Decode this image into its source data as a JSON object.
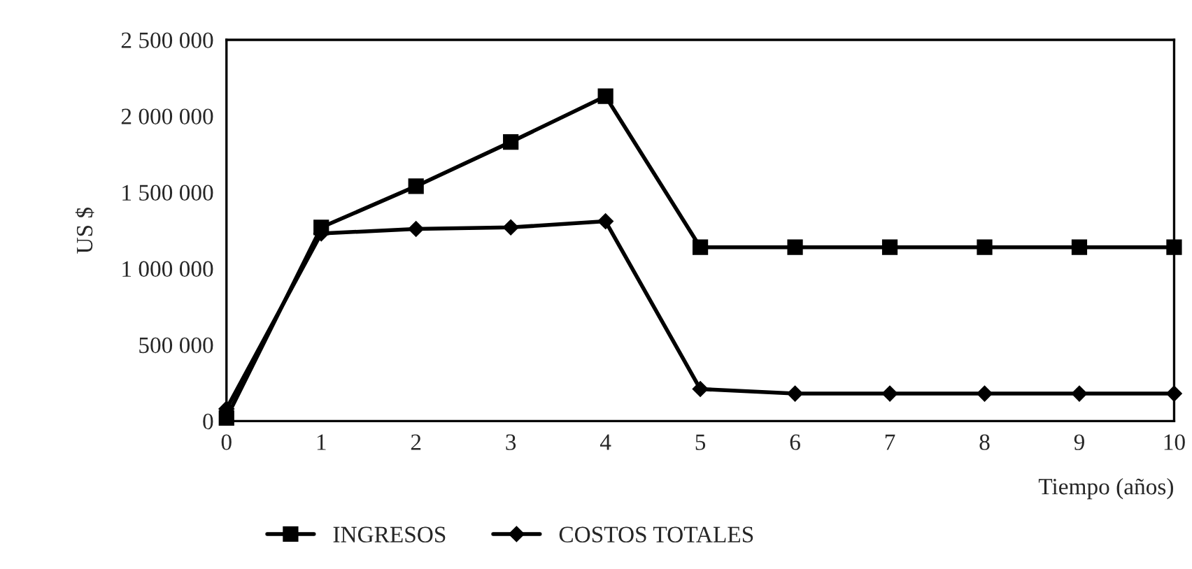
{
  "chart_data": {
    "type": "line",
    "xlabel": "Tiempo (años)",
    "ylabel": "US $",
    "x": [
      0,
      1,
      2,
      3,
      4,
      5,
      6,
      7,
      8,
      9,
      10
    ],
    "series": [
      {
        "name": "INGRESOS",
        "color": "#000000",
        "marker": "square",
        "values": [
          20000,
          1270000,
          1540000,
          1830000,
          2130000,
          1140000,
          1140000,
          1140000,
          1140000,
          1140000,
          1140000
        ]
      },
      {
        "name": "COSTOS TOTALES",
        "color": "#000000",
        "marker": "diamond",
        "values": [
          80000,
          1230000,
          1260000,
          1270000,
          1310000,
          210000,
          180000,
          180000,
          180000,
          180000,
          180000
        ]
      }
    ],
    "xlim": [
      0,
      10
    ],
    "xticks": [
      0,
      1,
      2,
      3,
      4,
      5,
      6,
      7,
      8,
      9,
      10
    ],
    "ylim": [
      0,
      2500000
    ],
    "yticks": [
      {
        "value": 0,
        "label": "0"
      },
      {
        "value": 500000,
        "label": "500 000"
      },
      {
        "value": 1000000,
        "label": "1 000 000"
      },
      {
        "value": 1500000,
        "label": "1 500 000"
      },
      {
        "value": 2000000,
        "label": "2 000 000"
      },
      {
        "value": 2500000,
        "label": "2 500 000"
      }
    ],
    "grid": false,
    "legend": "bottom",
    "line_style": "solid"
  }
}
